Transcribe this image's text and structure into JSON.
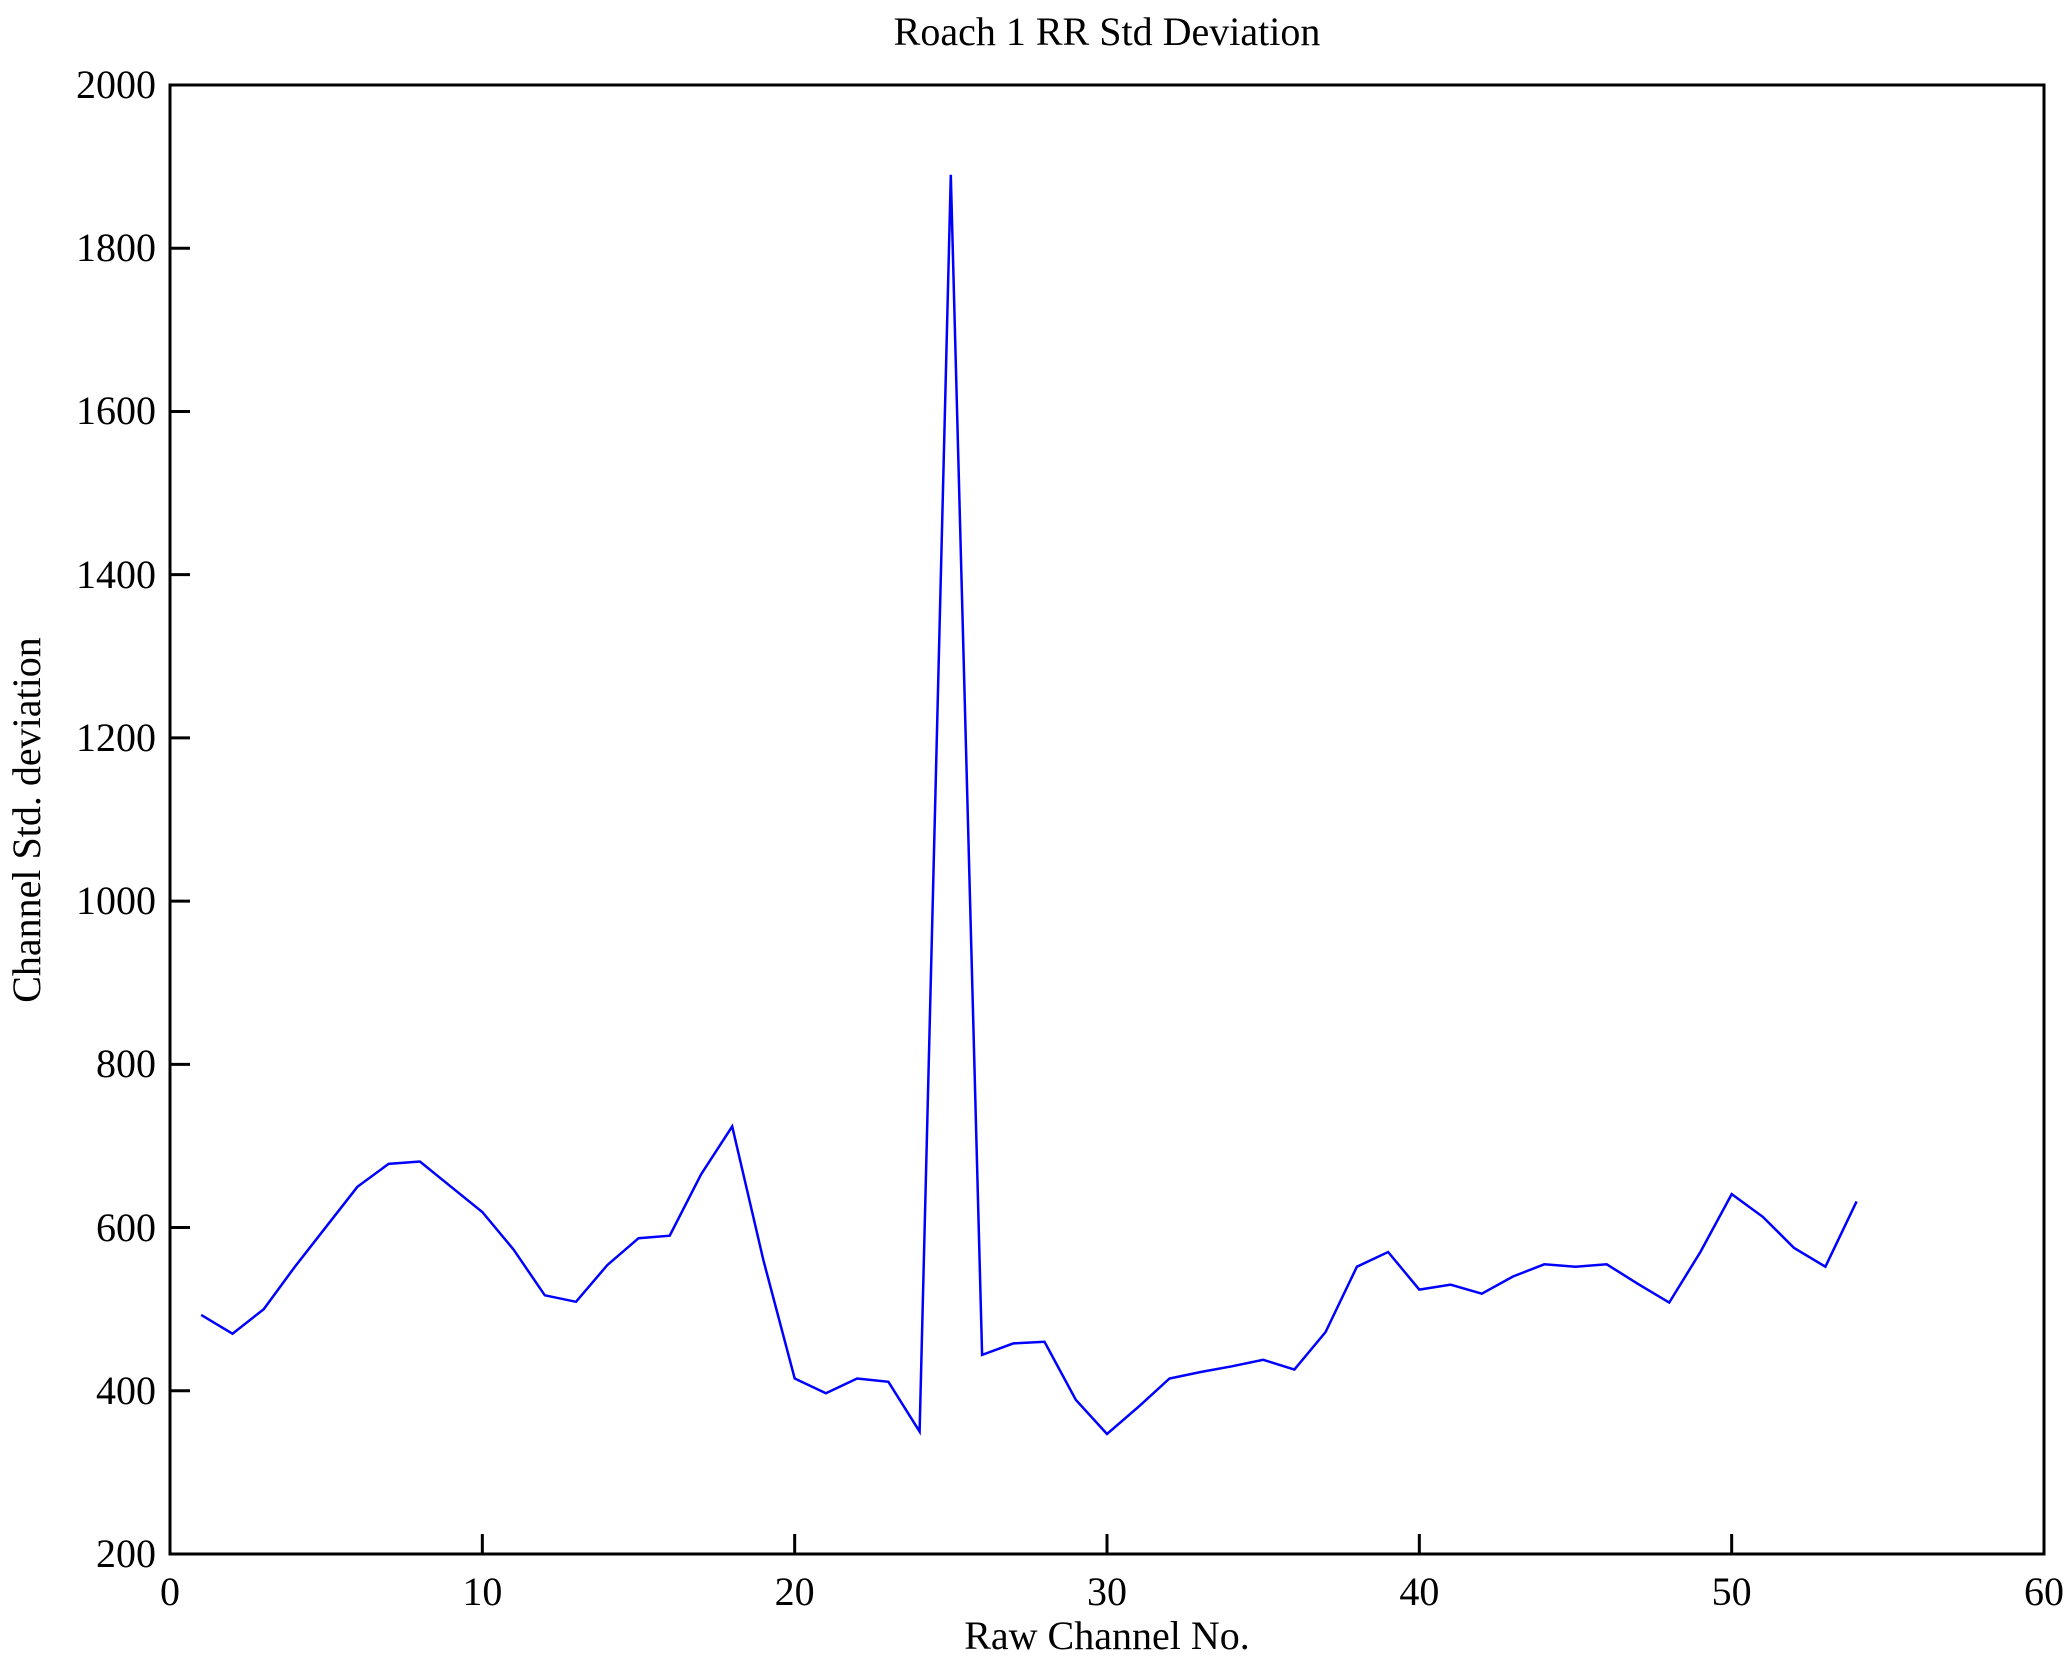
{
  "chart_data": {
    "type": "line",
    "title": "Roach 1 RR Std Deviation",
    "xlabel": "Raw Channel No.",
    "ylabel": "Channel Std. deviation",
    "x": [
      1,
      2,
      3,
      4,
      5,
      6,
      7,
      8,
      9,
      10,
      11,
      12,
      13,
      14,
      15,
      16,
      17,
      18,
      19,
      20,
      21,
      22,
      23,
      24,
      25,
      26,
      27,
      28,
      29,
      30,
      31,
      32,
      33,
      34,
      35,
      36,
      37,
      38,
      39,
      40,
      41,
      42,
      43,
      44,
      45,
      46,
      47,
      48,
      49,
      50,
      51,
      52,
      53,
      54
    ],
    "values": [
      493,
      470,
      500,
      552,
      601,
      650,
      678,
      681,
      650,
      619,
      573,
      517,
      509,
      554,
      587,
      590,
      665,
      724,
      560,
      415,
      397,
      415,
      411,
      350,
      1890,
      444,
      458,
      460,
      389,
      347,
      380,
      415,
      423,
      430,
      438,
      426,
      472,
      552,
      570,
      524,
      530,
      519,
      540,
      555,
      552,
      555,
      531,
      508,
      570,
      641,
      613,
      575,
      552,
      632
    ],
    "xlim": [
      0,
      60
    ],
    "ylim": [
      200,
      2000
    ],
    "xticks": [
      0,
      10,
      20,
      30,
      40,
      50,
      60
    ],
    "yticks": [
      200,
      400,
      600,
      800,
      1000,
      1200,
      1400,
      1600,
      1800,
      2000
    ],
    "grid": false,
    "legend": null,
    "line_color": "#0000FF",
    "axis_color": "#000000",
    "background": "#FFFFFF"
  }
}
